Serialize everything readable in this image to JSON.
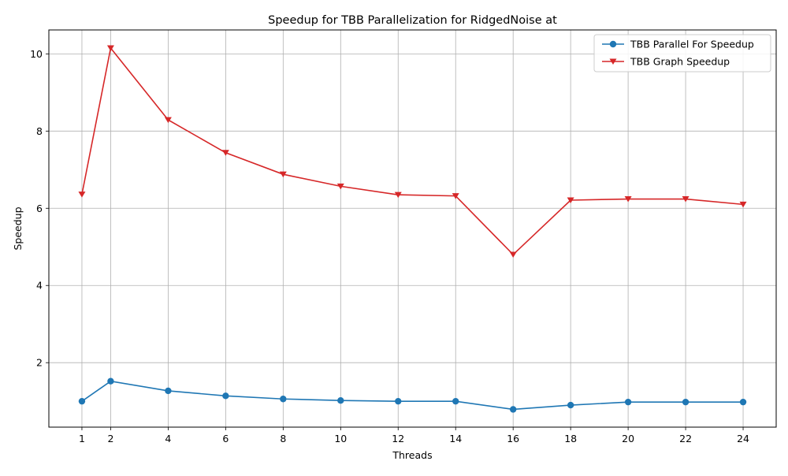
{
  "chart_data": {
    "type": "line",
    "title": "Speedup for TBB Parallelization for RidgedNoise at",
    "xlabel": "Threads",
    "ylabel": "Speedup",
    "x": [
      1,
      2,
      4,
      6,
      8,
      10,
      12,
      14,
      16,
      18,
      20,
      22,
      24
    ],
    "xlim": [
      -0.15,
      25.15
    ],
    "ylim": [
      0.33,
      10.62
    ],
    "xticks": [
      1,
      2,
      4,
      6,
      8,
      10,
      12,
      14,
      16,
      18,
      20,
      22,
      24
    ],
    "yticks": [
      2,
      4,
      6,
      8,
      10
    ],
    "grid": true,
    "legend_position": "top-right",
    "series": [
      {
        "name": "TBB Parallel For Speedup",
        "color": "#1f77b4",
        "marker": "circle",
        "values": [
          1.0,
          1.52,
          1.27,
          1.14,
          1.06,
          1.02,
          1.0,
          1.0,
          0.79,
          0.9,
          0.98,
          0.98,
          0.98
        ]
      },
      {
        "name": "TBB Graph Speedup",
        "color": "#d62728",
        "marker": "triangle-down",
        "values": [
          6.36,
          10.15,
          8.29,
          7.44,
          6.88,
          6.57,
          6.35,
          6.32,
          4.8,
          6.21,
          6.24,
          6.24,
          6.1
        ]
      }
    ]
  }
}
